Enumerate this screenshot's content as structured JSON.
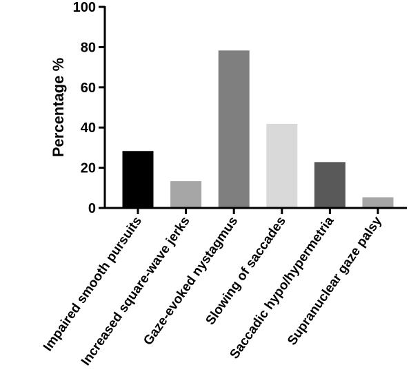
{
  "chart_data": {
    "type": "bar",
    "title": "",
    "xlabel": "",
    "ylabel": "Percentage %",
    "ylim": [
      0,
      100
    ],
    "yticks": [
      0,
      20,
      40,
      60,
      80,
      100
    ],
    "ytick_labels": [
      "0",
      "20",
      "40",
      "60",
      "80",
      "100"
    ],
    "grid": false,
    "categories": [
      "Impaired smooth pursuits",
      "Increased square-wave jerks",
      "Gaze-evoked nystagmus",
      "Slowing of saccades",
      "Saccadic hypo/hypermetria",
      "Supranuclear gaze palsy"
    ],
    "values": [
      28.5,
      13.5,
      78.5,
      42,
      23,
      5.5
    ],
    "colors": [
      "#000000",
      "#a6a6a6",
      "#7f7f7f",
      "#d9d9d9",
      "#595959",
      "#a6a6a6"
    ]
  }
}
